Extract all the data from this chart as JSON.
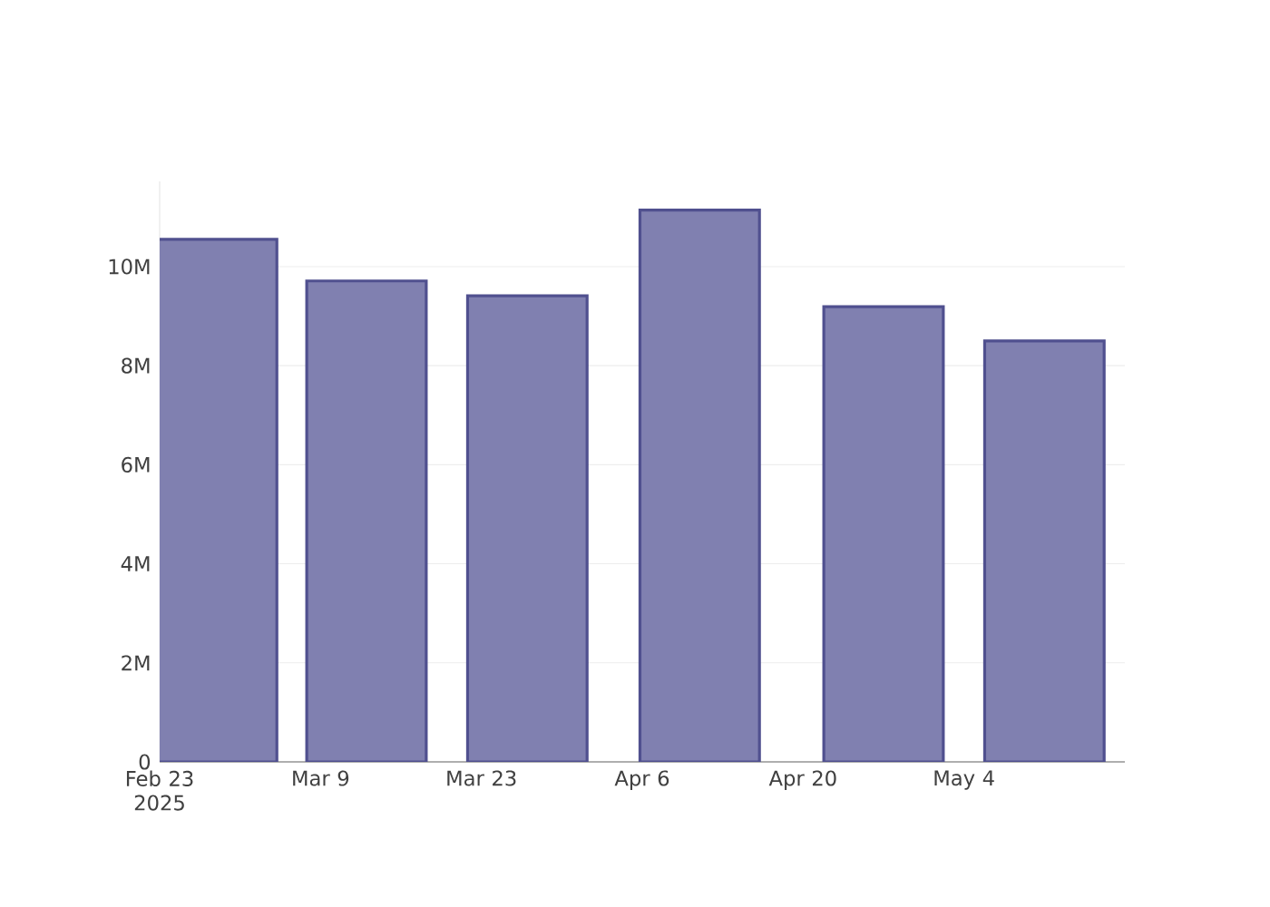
{
  "chart_data": {
    "type": "bar",
    "x": [
      "2025-02-28",
      "2025-03-13",
      "2025-03-27",
      "2025-04-11",
      "2025-04-27",
      "2025-05-11"
    ],
    "values": [
      10550000,
      9710000,
      9410000,
      11140000,
      9190000,
      8500000
    ],
    "color": "#8080b0",
    "xlim": [
      "2025-02-23",
      "2025-05-18"
    ],
    "xticks": [
      {
        "value": "2025-02-23",
        "label": "Feb 23 2025"
      },
      {
        "value": "2025-03-09",
        "label": "Mar 9"
      },
      {
        "value": "2025-03-23",
        "label": "Mar 23"
      },
      {
        "value": "2025-04-06",
        "label": "Apr 6"
      },
      {
        "value": "2025-04-20",
        "label": "Apr 20"
      },
      {
        "value": "2025-05-04",
        "label": "May 4"
      }
    ],
    "ylim": [
      0,
      11720000
    ],
    "yticks": [
      {
        "value": 0,
        "label": "0"
      },
      {
        "value": 2000000,
        "label": "2M"
      },
      {
        "value": 4000000,
        "label": "4M"
      },
      {
        "value": 6000000,
        "label": "6M"
      },
      {
        "value": 8000000,
        "label": "8M"
      },
      {
        "value": 10000000,
        "label": "10M"
      }
    ],
    "grid": "y"
  }
}
